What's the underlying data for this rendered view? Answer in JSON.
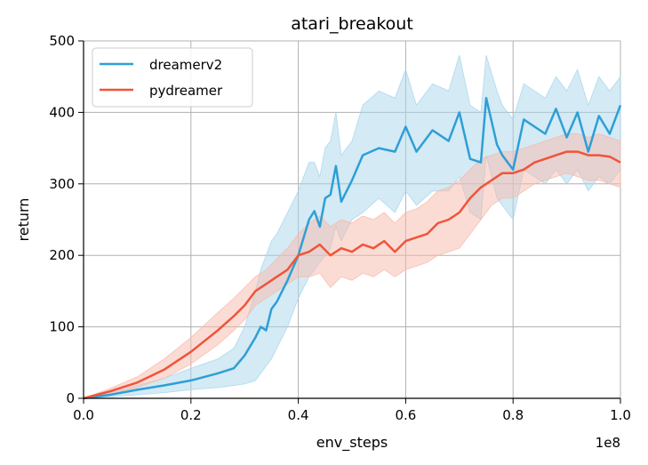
{
  "chart_data": {
    "type": "line",
    "title": "atari_breakout",
    "xlabel": "env_steps",
    "ylabel": "return",
    "x_offset_label": "1e8",
    "xlim": [
      0,
      1.0
    ],
    "ylim": [
      0,
      500
    ],
    "x_ticks": [
      "0.0",
      "0.2",
      "0.4",
      "0.6",
      "0.8",
      "1.0"
    ],
    "y_ticks": [
      "0",
      "100",
      "200",
      "300",
      "400",
      "500"
    ],
    "grid": true,
    "legend_position": "top-left",
    "series": [
      {
        "name": "dreamerv2",
        "color": "#2e9fd6",
        "band_color": "#a9d6ec",
        "x": [
          0.0,
          0.05,
          0.1,
          0.15,
          0.2,
          0.25,
          0.28,
          0.3,
          0.32,
          0.33,
          0.34,
          0.35,
          0.36,
          0.38,
          0.4,
          0.42,
          0.43,
          0.44,
          0.45,
          0.46,
          0.47,
          0.48,
          0.5,
          0.52,
          0.55,
          0.58,
          0.6,
          0.62,
          0.65,
          0.68,
          0.7,
          0.72,
          0.74,
          0.75,
          0.77,
          0.78,
          0.8,
          0.82,
          0.84,
          0.86,
          0.88,
          0.9,
          0.92,
          0.94,
          0.96,
          0.98,
          1.0
        ],
        "y": [
          0,
          5,
          12,
          18,
          25,
          35,
          42,
          60,
          85,
          100,
          95,
          125,
          135,
          165,
          200,
          250,
          262,
          240,
          280,
          285,
          325,
          275,
          305,
          340,
          350,
          345,
          380,
          345,
          375,
          360,
          400,
          335,
          330,
          420,
          355,
          340,
          320,
          390,
          380,
          370,
          405,
          365,
          400,
          345,
          395,
          370,
          410
        ],
        "y_low": [
          0,
          2,
          5,
          8,
          12,
          15,
          18,
          20,
          25,
          35,
          45,
          55,
          70,
          100,
          140,
          170,
          180,
          190,
          200,
          210,
          240,
          220,
          250,
          260,
          280,
          260,
          290,
          270,
          290,
          290,
          310,
          260,
          250,
          340,
          280,
          270,
          250,
          320,
          310,
          300,
          320,
          300,
          320,
          290,
          310,
          300,
          320
        ],
        "y_high": [
          0,
          8,
          18,
          28,
          42,
          55,
          70,
          100,
          150,
          180,
          200,
          220,
          230,
          260,
          290,
          330,
          330,
          310,
          350,
          360,
          400,
          340,
          360,
          410,
          430,
          420,
          460,
          410,
          440,
          430,
          480,
          410,
          400,
          480,
          430,
          410,
          390,
          440,
          430,
          420,
          450,
          430,
          460,
          410,
          450,
          430,
          450
        ]
      },
      {
        "name": "pydreamer",
        "color": "#f0543a",
        "band_color": "#f7b9ac",
        "x": [
          0.0,
          0.05,
          0.1,
          0.15,
          0.2,
          0.25,
          0.28,
          0.3,
          0.32,
          0.34,
          0.36,
          0.38,
          0.4,
          0.42,
          0.44,
          0.46,
          0.48,
          0.5,
          0.52,
          0.54,
          0.56,
          0.58,
          0.6,
          0.62,
          0.64,
          0.66,
          0.68,
          0.7,
          0.72,
          0.74,
          0.76,
          0.78,
          0.8,
          0.82,
          0.84,
          0.86,
          0.88,
          0.9,
          0.92,
          0.94,
          0.96,
          0.98,
          1.0
        ],
        "y": [
          0,
          10,
          22,
          40,
          65,
          95,
          115,
          130,
          150,
          160,
          170,
          180,
          200,
          205,
          215,
          200,
          210,
          205,
          215,
          210,
          220,
          205,
          220,
          225,
          230,
          245,
          250,
          260,
          280,
          295,
          305,
          315,
          315,
          320,
          330,
          335,
          340,
          345,
          345,
          340,
          340,
          338,
          330
        ],
        "y_low": [
          0,
          6,
          15,
          28,
          48,
          75,
          95,
          110,
          130,
          140,
          150,
          160,
          170,
          170,
          175,
          155,
          170,
          165,
          175,
          170,
          180,
          170,
          180,
          185,
          190,
          200,
          205,
          210,
          230,
          250,
          270,
          280,
          280,
          290,
          300,
          305,
          310,
          315,
          310,
          305,
          305,
          300,
          295
        ],
        "y_high": [
          0,
          14,
          30,
          55,
          85,
          120,
          140,
          155,
          170,
          180,
          195,
          210,
          230,
          245,
          255,
          240,
          250,
          245,
          255,
          250,
          260,
          245,
          260,
          265,
          275,
          290,
          295,
          305,
          320,
          335,
          340,
          345,
          345,
          350,
          355,
          360,
          365,
          370,
          370,
          365,
          370,
          365,
          360
        ]
      }
    ]
  }
}
